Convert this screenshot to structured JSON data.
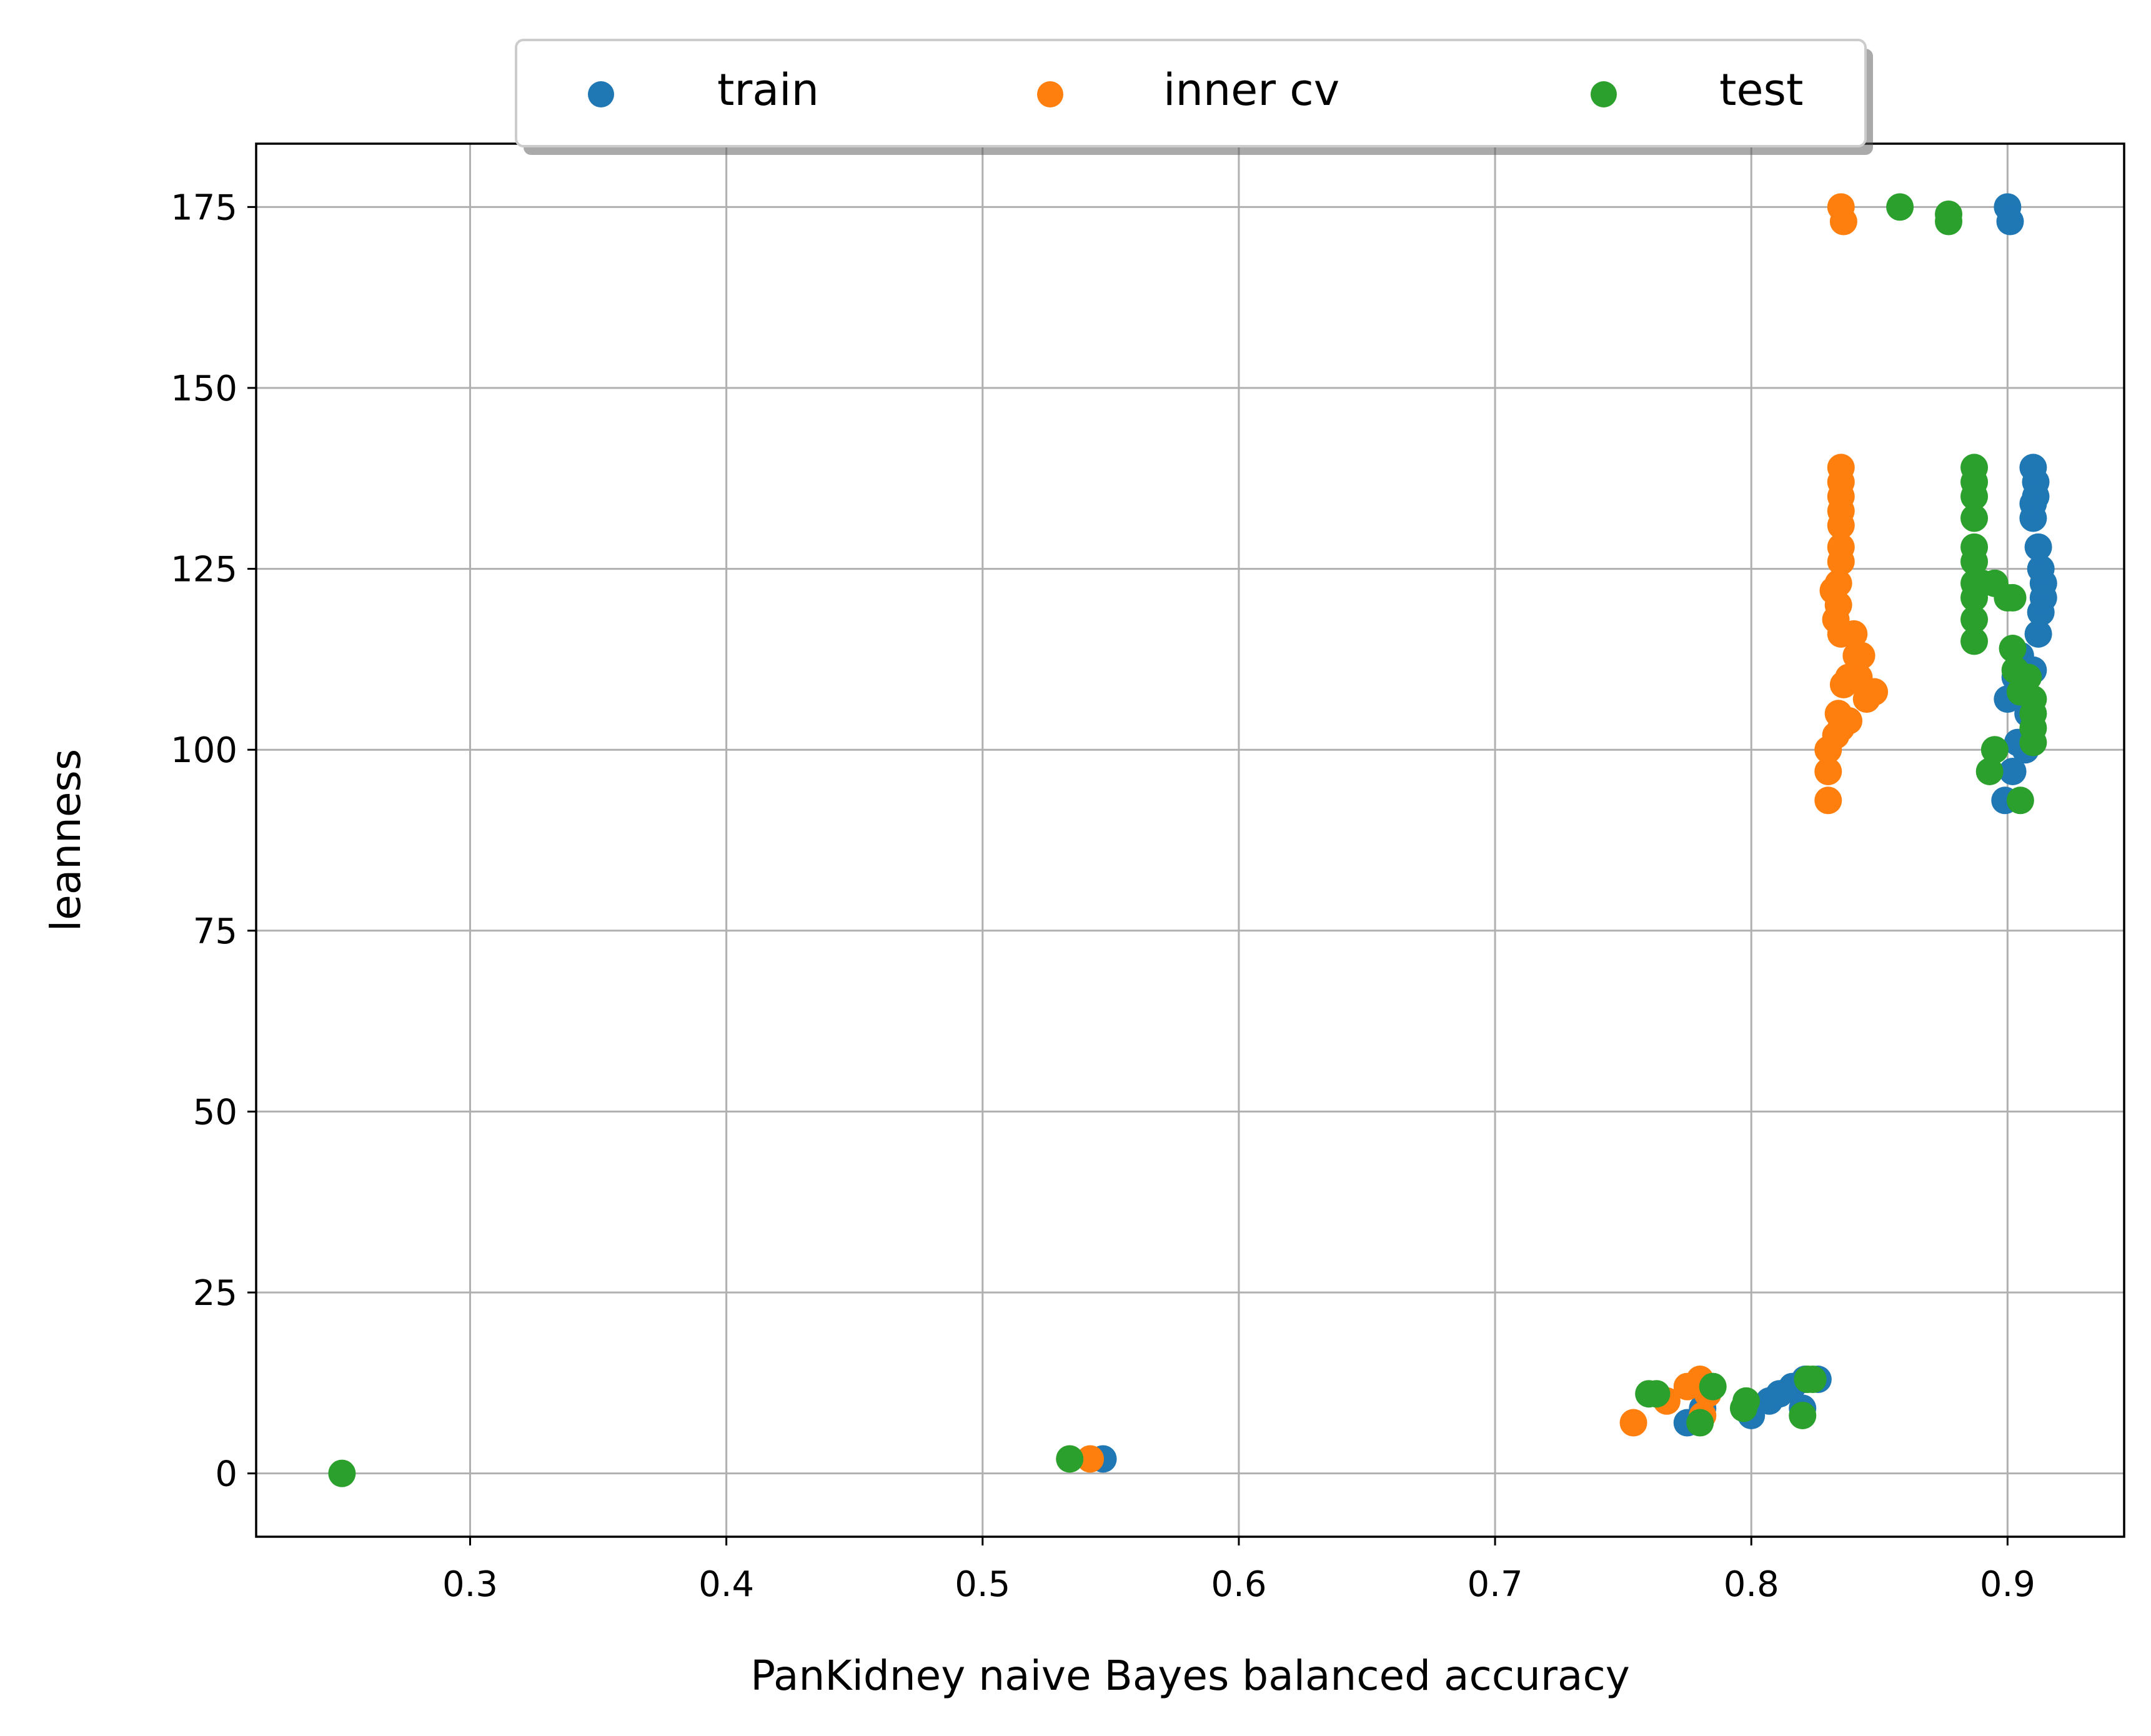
{
  "chart_data": {
    "type": "scatter",
    "title": "",
    "xlabel": "PanKidney naive Bayes balanced accuracy",
    "ylabel": "leanness",
    "xlim": [
      0.2165,
      0.9455
    ],
    "ylim": [
      -8.75,
      183.75
    ],
    "xticks": [
      0.3,
      0.4,
      0.5,
      0.6,
      0.7,
      0.8,
      0.9
    ],
    "xtick_labels": [
      "0.3",
      "0.4",
      "0.5",
      "0.6",
      "0.7",
      "0.8",
      "0.9"
    ],
    "yticks": [
      0,
      25,
      50,
      75,
      100,
      125,
      150,
      175
    ],
    "ytick_labels": [
      "0",
      "25",
      "50",
      "75",
      "100",
      "125",
      "150",
      "175"
    ],
    "grid": true,
    "legend": {
      "placement": "top-center, above plot",
      "columns": 3
    },
    "series": [
      {
        "name": "train",
        "color": "#1f77b4",
        "points": [
          [
            0.547,
            2
          ],
          [
            0.775,
            7
          ],
          [
            0.781,
            9
          ],
          [
            0.8,
            8
          ],
          [
            0.807,
            10
          ],
          [
            0.811,
            11
          ],
          [
            0.816,
            12
          ],
          [
            0.821,
            13
          ],
          [
            0.826,
            13
          ],
          [
            0.82,
            9
          ],
          [
            0.9,
            175
          ],
          [
            0.901,
            173
          ],
          [
            0.899,
            93
          ],
          [
            0.902,
            97
          ],
          [
            0.904,
            101
          ],
          [
            0.907,
            100
          ],
          [
            0.9,
            107
          ],
          [
            0.903,
            110
          ],
          [
            0.905,
            113
          ],
          [
            0.908,
            105
          ],
          [
            0.91,
            111
          ],
          [
            0.912,
            116
          ],
          [
            0.913,
            119
          ],
          [
            0.914,
            121
          ],
          [
            0.914,
            123
          ],
          [
            0.913,
            125
          ],
          [
            0.912,
            128
          ],
          [
            0.91,
            132
          ],
          [
            0.91,
            134
          ],
          [
            0.911,
            135
          ],
          [
            0.911,
            137
          ],
          [
            0.91,
            139
          ]
        ]
      },
      {
        "name": "inner cv",
        "color": "#ff7f0e",
        "points": [
          [
            0.542,
            2
          ],
          [
            0.754,
            7
          ],
          [
            0.767,
            10
          ],
          [
            0.775,
            12
          ],
          [
            0.78,
            13
          ],
          [
            0.781,
            8
          ],
          [
            0.783,
            11
          ],
          [
            0.835,
            175
          ],
          [
            0.836,
            173
          ],
          [
            0.83,
            93
          ],
          [
            0.83,
            97
          ],
          [
            0.83,
            100
          ],
          [
            0.833,
            102
          ],
          [
            0.835,
            103
          ],
          [
            0.834,
            105
          ],
          [
            0.838,
            104
          ],
          [
            0.836,
            109
          ],
          [
            0.838,
            110
          ],
          [
            0.842,
            110
          ],
          [
            0.841,
            113
          ],
          [
            0.843,
            113
          ],
          [
            0.845,
            107
          ],
          [
            0.848,
            108
          ],
          [
            0.84,
            116
          ],
          [
            0.835,
            116
          ],
          [
            0.833,
            118
          ],
          [
            0.834,
            120
          ],
          [
            0.832,
            122
          ],
          [
            0.834,
            123
          ],
          [
            0.835,
            126
          ],
          [
            0.835,
            128
          ],
          [
            0.835,
            131
          ],
          [
            0.835,
            133
          ],
          [
            0.835,
            135
          ],
          [
            0.835,
            137
          ],
          [
            0.835,
            139
          ]
        ]
      },
      {
        "name": "test",
        "color": "#2ca02c",
        "points": [
          [
            0.25,
            0
          ],
          [
            0.534,
            2
          ],
          [
            0.76,
            11
          ],
          [
            0.763,
            11
          ],
          [
            0.78,
            7
          ],
          [
            0.785,
            12
          ],
          [
            0.797,
            9
          ],
          [
            0.798,
            10
          ],
          [
            0.82,
            8
          ],
          [
            0.822,
            13
          ],
          [
            0.824,
            13
          ],
          [
            0.858,
            175
          ],
          [
            0.877,
            173
          ],
          [
            0.877,
            174
          ],
          [
            0.887,
            139
          ],
          [
            0.887,
            137
          ],
          [
            0.887,
            135
          ],
          [
            0.887,
            132
          ],
          [
            0.887,
            128
          ],
          [
            0.887,
            126
          ],
          [
            0.887,
            123
          ],
          [
            0.887,
            121
          ],
          [
            0.887,
            118
          ],
          [
            0.887,
            115
          ],
          [
            0.89,
            123
          ],
          [
            0.895,
            123
          ],
          [
            0.9,
            121
          ],
          [
            0.902,
            121
          ],
          [
            0.902,
            114
          ],
          [
            0.903,
            111
          ],
          [
            0.905,
            108
          ],
          [
            0.908,
            110
          ],
          [
            0.91,
            107
          ],
          [
            0.91,
            105
          ],
          [
            0.91,
            103
          ],
          [
            0.91,
            101
          ],
          [
            0.893,
            97
          ],
          [
            0.895,
            100
          ],
          [
            0.905,
            93
          ]
        ]
      }
    ]
  }
}
